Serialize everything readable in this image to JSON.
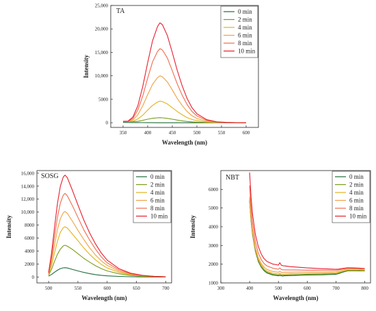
{
  "chart_data": [
    {
      "type": "line",
      "title": "TA",
      "xlabel": "Wavelength (nm)",
      "ylabel": "Intensity",
      "xlim": [
        325,
        625
      ],
      "ylim": [
        -1000,
        25000
      ],
      "xticks": [
        350,
        400,
        450,
        500,
        550,
        600
      ],
      "xtick_labels": [
        "350",
        "400",
        "450",
        "500",
        "550",
        "600"
      ],
      "yticks": [
        0,
        5000,
        10000,
        15000,
        20000,
        25000
      ],
      "ytick_labels": [
        "0",
        "5000",
        "10,000",
        "15,000",
        "20,000",
        "25,000"
      ],
      "legend_position": "top-right",
      "x": [
        350,
        360,
        370,
        380,
        390,
        400,
        410,
        420,
        425,
        430,
        440,
        450,
        460,
        470,
        480,
        490,
        500,
        520,
        540,
        560,
        580,
        600
      ],
      "series": [
        {
          "name": "0 min",
          "color": "#1d6b3a",
          "values": [
            60,
            50,
            40,
            30,
            20,
            10,
            5,
            0,
            0,
            0,
            0,
            0,
            0,
            0,
            0,
            0,
            0,
            0,
            0,
            0,
            0,
            0
          ]
        },
        {
          "name": "2 min",
          "color": "#7a9a1a",
          "values": [
            300,
            250,
            220,
            300,
            500,
            750,
            950,
            1050,
            1080,
            1050,
            930,
            750,
            560,
            400,
            270,
            180,
            120,
            50,
            20,
            10,
            5,
            0
          ]
        },
        {
          "name": "4 min",
          "color": "#e2b21a",
          "values": [
            300,
            270,
            350,
            800,
            1600,
            2700,
            3700,
            4400,
            4600,
            4500,
            4000,
            3200,
            2400,
            1700,
            1100,
            700,
            440,
            160,
            60,
            20,
            5,
            0
          ]
        },
        {
          "name": "6 min",
          "color": "#f0a040",
          "values": [
            300,
            300,
            600,
            1700,
            3600,
            6000,
            8200,
            9600,
            10000,
            9800,
            8700,
            7000,
            5200,
            3700,
            2400,
            1500,
            900,
            320,
            100,
            30,
            10,
            0
          ]
        },
        {
          "name": "8 min",
          "color": "#f06a48",
          "values": [
            300,
            320,
            900,
            2700,
            5700,
            9500,
            13000,
            15200,
            15800,
            15500,
            13800,
            11100,
            8300,
            5900,
            3900,
            2400,
            1450,
            500,
            160,
            50,
            15,
            0
          ]
        },
        {
          "name": "10 min",
          "color": "#e81c2c",
          "values": [
            300,
            350,
            1200,
            3600,
            7700,
            12800,
            17500,
            20500,
            21300,
            20900,
            18600,
            15000,
            11200,
            7900,
            5200,
            3200,
            1900,
            650,
            200,
            60,
            20,
            0
          ]
        }
      ]
    },
    {
      "type": "line",
      "title": "SOSG",
      "xlabel": "Wavelength (nm)",
      "ylabel": "Intensity",
      "xlim": [
        480,
        710
      ],
      "ylim": [
        -900,
        16400
      ],
      "xticks": [
        500,
        550,
        600,
        650,
        700
      ],
      "xtick_labels": [
        "500",
        "550",
        "600",
        "650",
        "700"
      ],
      "yticks": [
        0,
        2000,
        4000,
        6000,
        8000,
        10000,
        12000,
        14000,
        16000
      ],
      "ytick_labels": [
        "0",
        "2000",
        "4000",
        "6000",
        "8000",
        "10,000",
        "12,000",
        "14,000",
        "16,000"
      ],
      "legend_position": "top-right",
      "x": [
        500,
        505,
        510,
        515,
        520,
        525,
        528,
        532,
        540,
        550,
        560,
        570,
        580,
        590,
        600,
        620,
        640,
        660,
        680,
        700
      ],
      "series": [
        {
          "name": "0 min",
          "color": "#1d6b3a",
          "values": [
            150,
            400,
            750,
            1050,
            1300,
            1420,
            1440,
            1400,
            1200,
            950,
            720,
            530,
            380,
            270,
            190,
            100,
            50,
            25,
            10,
            5
          ]
        },
        {
          "name": "2 min",
          "color": "#7a9a1a",
          "values": [
            300,
            1200,
            2400,
            3500,
            4300,
            4800,
            4900,
            4750,
            4300,
            3600,
            2900,
            2300,
            1750,
            1300,
            950,
            500,
            250,
            120,
            60,
            20
          ]
        },
        {
          "name": "4 min",
          "color": "#e2b21a",
          "values": [
            400,
            1800,
            3700,
            5500,
            6900,
            7600,
            7750,
            7550,
            6700,
            5600,
            4500,
            3500,
            2650,
            1950,
            1400,
            720,
            360,
            170,
            80,
            30
          ]
        },
        {
          "name": "6 min",
          "color": "#f0a040",
          "values": [
            500,
            2400,
            4900,
            7300,
            9000,
            9900,
            10100,
            9800,
            8700,
            7200,
            5800,
            4500,
            3400,
            2500,
            1800,
            900,
            440,
            210,
            90,
            35
          ]
        },
        {
          "name": "8 min",
          "color": "#f06a48",
          "values": [
            600,
            3000,
            6200,
            9200,
            11400,
            12600,
            12900,
            12500,
            11100,
            9200,
            7300,
            5700,
            4300,
            3100,
            2200,
            1100,
            520,
            240,
            100,
            40
          ]
        },
        {
          "name": "10 min",
          "color": "#e81c2c",
          "values": [
            700,
            3700,
            7600,
            11300,
            14000,
            15400,
            15700,
            15300,
            13500,
            11100,
            8800,
            6800,
            5100,
            3700,
            2600,
            1300,
            600,
            270,
            110,
            45
          ]
        }
      ]
    },
    {
      "type": "line",
      "title": "NBT",
      "xlabel": "Wavelength (nm)",
      "ylabel": "Intensity",
      "xlim": [
        300,
        820
      ],
      "ylim": [
        1000,
        7000
      ],
      "xticks": [
        300,
        400,
        500,
        600,
        700,
        800
      ],
      "xtick_labels": [
        "300",
        "400",
        "500",
        "600",
        "700",
        "800"
      ],
      "yticks": [
        1000,
        2000,
        3000,
        4000,
        5000,
        6000
      ],
      "ytick_labels": [
        "1000",
        "2000",
        "3000",
        "4000",
        "5000",
        "6000"
      ],
      "legend_position": "top-right",
      "x": [
        400,
        405,
        410,
        420,
        430,
        440,
        450,
        460,
        480,
        500,
        505,
        510,
        515,
        520,
        540,
        560,
        600,
        650,
        700,
        710,
        720,
        740,
        760,
        780,
        800
      ],
      "series": [
        {
          "name": "0 min",
          "color": "#1d6b3a",
          "values": [
            5400,
            4300,
            3600,
            2700,
            2150,
            1850,
            1650,
            1530,
            1420,
            1380,
            1400,
            1380,
            1370,
            1380,
            1390,
            1400,
            1420,
            1430,
            1460,
            1500,
            1560,
            1640,
            1650,
            1640,
            1640
          ]
        },
        {
          "name": "2 min",
          "color": "#7a9a1a",
          "values": [
            5450,
            4350,
            3650,
            2750,
            2200,
            1890,
            1690,
            1570,
            1460,
            1420,
            1450,
            1420,
            1410,
            1420,
            1430,
            1440,
            1460,
            1470,
            1490,
            1530,
            1590,
            1660,
            1670,
            1660,
            1650
          ]
        },
        {
          "name": "4 min",
          "color": "#e2b21a",
          "values": [
            5500,
            4400,
            3700,
            2800,
            2260,
            1950,
            1750,
            1630,
            1520,
            1480,
            1520,
            1480,
            1470,
            1480,
            1490,
            1500,
            1510,
            1520,
            1540,
            1570,
            1620,
            1690,
            1700,
            1690,
            1680
          ]
        },
        {
          "name": "6 min",
          "color": "#f0a040",
          "values": [
            5600,
            4500,
            3800,
            2900,
            2350,
            2040,
            1840,
            1720,
            1610,
            1570,
            1620,
            1570,
            1560,
            1570,
            1570,
            1580,
            1580,
            1590,
            1600,
            1630,
            1680,
            1740,
            1750,
            1740,
            1720
          ]
        },
        {
          "name": "8 min",
          "color": "#f06a48",
          "values": [
            6200,
            5000,
            4200,
            3200,
            2600,
            2250,
            2040,
            1910,
            1790,
            1730,
            1800,
            1720,
            1700,
            1700,
            1690,
            1690,
            1680,
            1680,
            1680,
            1700,
            1740,
            1790,
            1790,
            1780,
            1760
          ]
        },
        {
          "name": "10 min",
          "color": "#e81c2c",
          "values": [
            6900,
            5600,
            4700,
            3600,
            2950,
            2550,
            2300,
            2150,
            2010,
            1950,
            2080,
            1950,
            1920,
            1910,
            1870,
            1850,
            1800,
            1760,
            1730,
            1740,
            1770,
            1810,
            1800,
            1790,
            1770
          ]
        }
      ]
    }
  ]
}
